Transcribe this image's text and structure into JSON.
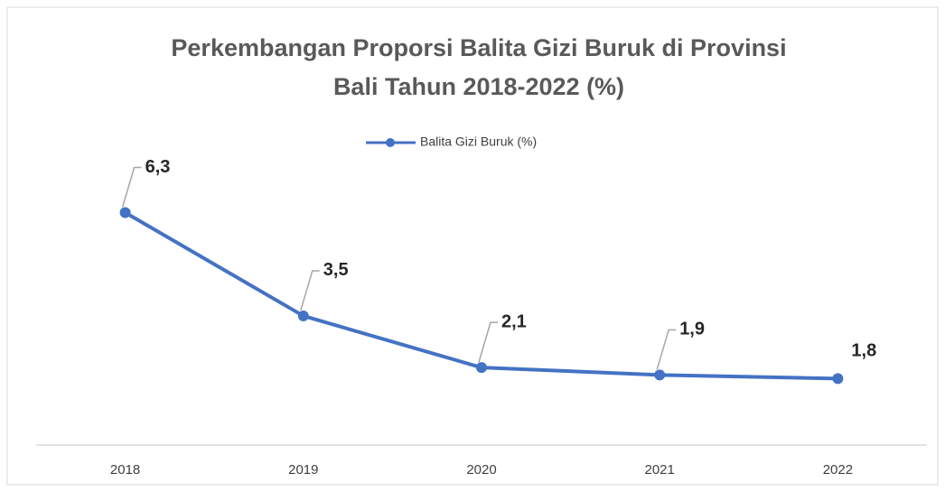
{
  "chart_data": {
    "type": "line",
    "title": [
      "Perkembangan Proporsi Balita Gizi Buruk di Provinsi",
      "Bali Tahun 2018-2022 (%)"
    ],
    "categories": [
      "2018",
      "2019",
      "2020",
      "2021",
      "2022"
    ],
    "series": [
      {
        "name": "Balita Gizi Buruk (%)",
        "color": "#4472c4",
        "values": [
          6.3,
          3.5,
          2.1,
          1.9,
          1.8
        ],
        "value_labels": [
          "6,3",
          "3,5",
          "2,1",
          "1,9",
          "1,8"
        ]
      }
    ],
    "ylim": [
      0,
      8
    ]
  }
}
